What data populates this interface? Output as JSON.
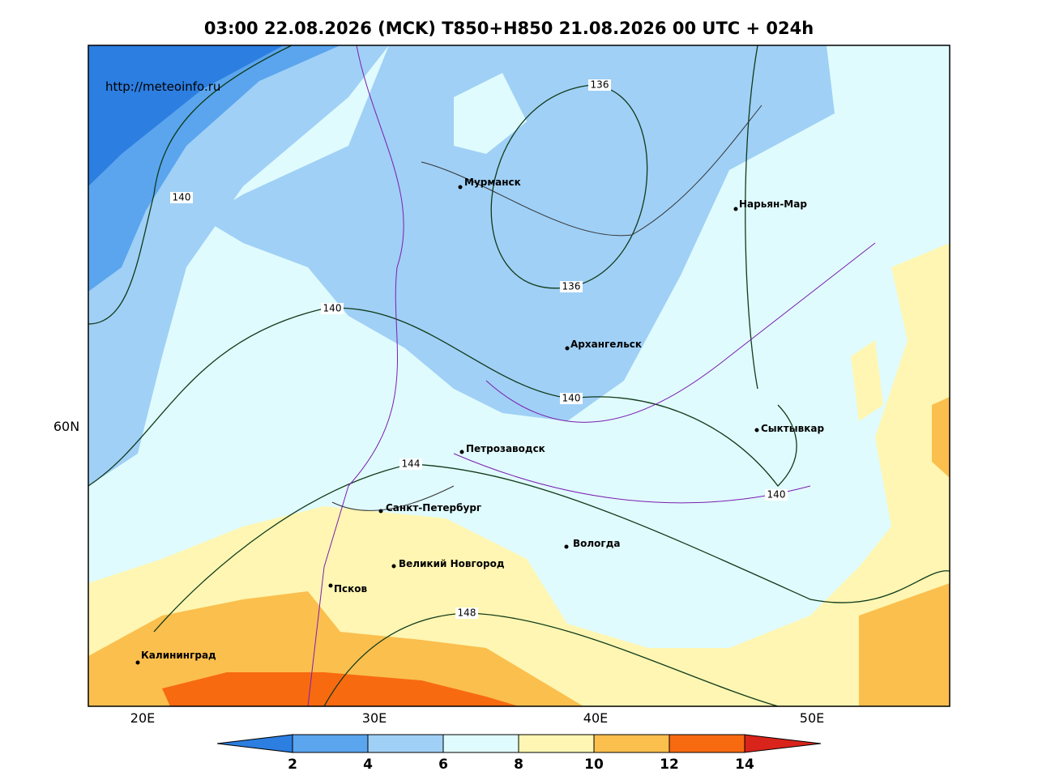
{
  "header": {
    "title": "03:00 22.08.2026 (MCK) T850+H850 21.08.2026 00 UTC + 024h"
  },
  "map": {
    "url": "http://meteoinfo.ru",
    "lat_labels": [
      "60N"
    ],
    "lon_labels": [
      "20E",
      "30E",
      "40E",
      "50E"
    ],
    "cities": [
      "Мурманск",
      "Нарьян-Мар",
      "Архангельск",
      "Сыктывкар",
      "Петрозаводск",
      "Санкт-Петербург",
      "Вологда",
      "Великий Новгород",
      "Псков",
      "Калининград"
    ],
    "contour_labels": [
      "136",
      "136",
      "140",
      "140",
      "140",
      "140",
      "144",
      "148"
    ]
  },
  "colorbar": {
    "ticks": [
      "2",
      "4",
      "6",
      "8",
      "10",
      "12",
      "14"
    ]
  }
}
